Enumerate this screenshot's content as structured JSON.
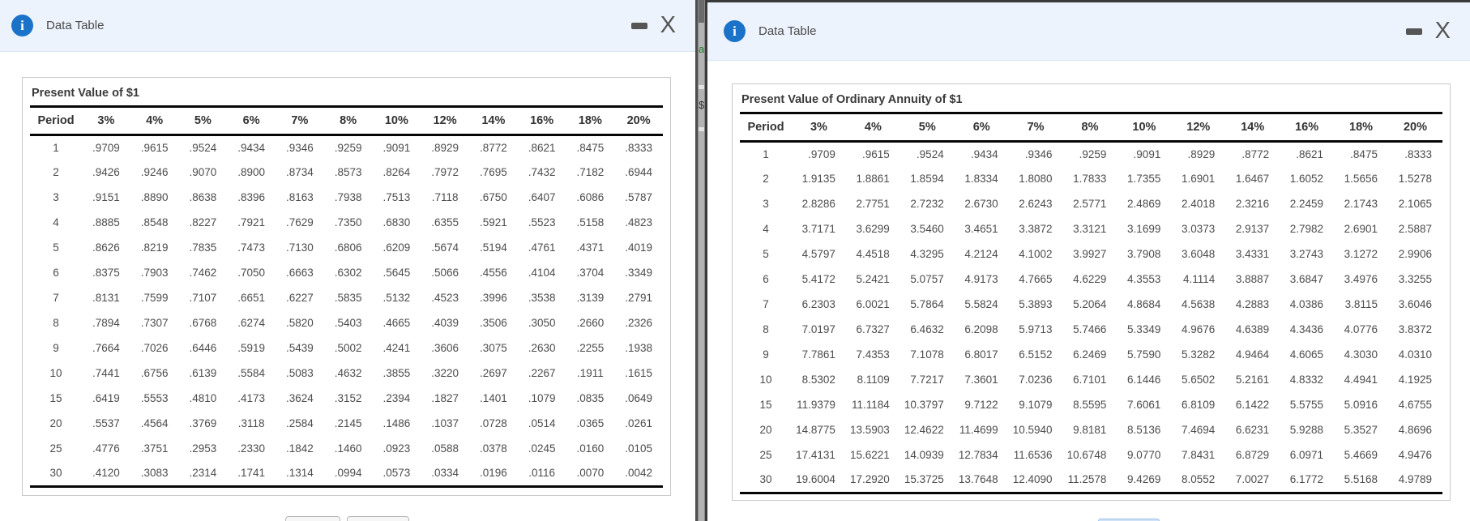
{
  "info_glyph": "i",
  "left": {
    "title_bar": {
      "title": "Data Table",
      "close": "X"
    },
    "table": {
      "title": "Present Value of $1",
      "columns": [
        "Period",
        "3%",
        "4%",
        "5%",
        "6%",
        "7%",
        "8%",
        "10%",
        "12%",
        "14%",
        "16%",
        "18%",
        "20%"
      ],
      "rows": [
        [
          "1",
          ".9709",
          ".9615",
          ".9524",
          ".9434",
          ".9346",
          ".9259",
          ".9091",
          ".8929",
          ".8772",
          ".8621",
          ".8475",
          ".8333"
        ],
        [
          "2",
          ".9426",
          ".9246",
          ".9070",
          ".8900",
          ".8734",
          ".8573",
          ".8264",
          ".7972",
          ".7695",
          ".7432",
          ".7182",
          ".6944"
        ],
        [
          "3",
          ".9151",
          ".8890",
          ".8638",
          ".8396",
          ".8163",
          ".7938",
          ".7513",
          ".7118",
          ".6750",
          ".6407",
          ".6086",
          ".5787"
        ],
        [
          "4",
          ".8885",
          ".8548",
          ".8227",
          ".7921",
          ".7629",
          ".7350",
          ".6830",
          ".6355",
          ".5921",
          ".5523",
          ".5158",
          ".4823"
        ],
        [
          "5",
          ".8626",
          ".8219",
          ".7835",
          ".7473",
          ".7130",
          ".6806",
          ".6209",
          ".5674",
          ".5194",
          ".4761",
          ".4371",
          ".4019"
        ],
        [
          "6",
          ".8375",
          ".7903",
          ".7462",
          ".7050",
          ".6663",
          ".6302",
          ".5645",
          ".5066",
          ".4556",
          ".4104",
          ".3704",
          ".3349"
        ],
        [
          "7",
          ".8131",
          ".7599",
          ".7107",
          ".6651",
          ".6227",
          ".5835",
          ".5132",
          ".4523",
          ".3996",
          ".3538",
          ".3139",
          ".2791"
        ],
        [
          "8",
          ".7894",
          ".7307",
          ".6768",
          ".6274",
          ".5820",
          ".5403",
          ".4665",
          ".4039",
          ".3506",
          ".3050",
          ".2660",
          ".2326"
        ],
        [
          "9",
          ".7664",
          ".7026",
          ".6446",
          ".5919",
          ".5439",
          ".5002",
          ".4241",
          ".3606",
          ".3075",
          ".2630",
          ".2255",
          ".1938"
        ],
        [
          "10",
          ".7441",
          ".6756",
          ".6139",
          ".5584",
          ".5083",
          ".4632",
          ".3855",
          ".3220",
          ".2697",
          ".2267",
          ".1911",
          ".1615"
        ],
        [
          "15",
          ".6419",
          ".5553",
          ".4810",
          ".4173",
          ".3624",
          ".3152",
          ".2394",
          ".1827",
          ".1401",
          ".1079",
          ".0835",
          ".0649"
        ],
        [
          "20",
          ".5537",
          ".4564",
          ".3769",
          ".3118",
          ".2584",
          ".2145",
          ".1486",
          ".1037",
          ".0728",
          ".0514",
          ".0365",
          ".0261"
        ],
        [
          "25",
          ".4776",
          ".3751",
          ".2953",
          ".2330",
          ".1842",
          ".1460",
          ".0923",
          ".0588",
          ".0378",
          ".0245",
          ".0160",
          ".0105"
        ],
        [
          "30",
          ".4120",
          ".3083",
          ".2314",
          ".1741",
          ".1314",
          ".0994",
          ".0573",
          ".0334",
          ".0196",
          ".0116",
          ".0070",
          ".0042"
        ]
      ]
    }
  },
  "right": {
    "title_bar": {
      "title": "Data Table",
      "close": "X"
    },
    "table": {
      "title": "Present Value of Ordinary Annuity of $1",
      "columns": [
        "Period",
        "3%",
        "4%",
        "5%",
        "6%",
        "7%",
        "8%",
        "10%",
        "12%",
        "14%",
        "16%",
        "18%",
        "20%"
      ],
      "rows": [
        [
          "1",
          ".9709",
          ".9615",
          ".9524",
          ".9434",
          ".9346",
          ".9259",
          ".9091",
          ".8929",
          ".8772",
          ".8621",
          ".8475",
          ".8333"
        ],
        [
          "2",
          "1.9135",
          "1.8861",
          "1.8594",
          "1.8334",
          "1.8080",
          "1.7833",
          "1.7355",
          "1.6901",
          "1.6467",
          "1.6052",
          "1.5656",
          "1.5278"
        ],
        [
          "3",
          "2.8286",
          "2.7751",
          "2.7232",
          "2.6730",
          "2.6243",
          "2.5771",
          "2.4869",
          "2.4018",
          "2.3216",
          "2.2459",
          "2.1743",
          "2.1065"
        ],
        [
          "4",
          "3.7171",
          "3.6299",
          "3.5460",
          "3.4651",
          "3.3872",
          "3.3121",
          "3.1699",
          "3.0373",
          "2.9137",
          "2.7982",
          "2.6901",
          "2.5887"
        ],
        [
          "5",
          "4.5797",
          "4.4518",
          "4.3295",
          "4.2124",
          "4.1002",
          "3.9927",
          "3.7908",
          "3.6048",
          "3.4331",
          "3.2743",
          "3.1272",
          "2.9906"
        ],
        [
          "6",
          "5.4172",
          "5.2421",
          "5.0757",
          "4.9173",
          "4.7665",
          "4.6229",
          "4.3553",
          "4.1114",
          "3.8887",
          "3.6847",
          "3.4976",
          "3.3255"
        ],
        [
          "7",
          "6.2303",
          "6.0021",
          "5.7864",
          "5.5824",
          "5.3893",
          "5.2064",
          "4.8684",
          "4.5638",
          "4.2883",
          "4.0386",
          "3.8115",
          "3.6046"
        ],
        [
          "8",
          "7.0197",
          "6.7327",
          "6.4632",
          "6.2098",
          "5.9713",
          "5.7466",
          "5.3349",
          "4.9676",
          "4.6389",
          "4.3436",
          "4.0776",
          "3.8372"
        ],
        [
          "9",
          "7.7861",
          "7.4353",
          "7.1078",
          "6.8017",
          "6.5152",
          "6.2469",
          "5.7590",
          "5.3282",
          "4.9464",
          "4.6065",
          "4.3030",
          "4.0310"
        ],
        [
          "10",
          "8.5302",
          "8.1109",
          "7.7217",
          "7.3601",
          "7.0236",
          "6.7101",
          "6.1446",
          "5.6502",
          "5.2161",
          "4.8332",
          "4.4941",
          "4.1925"
        ],
        [
          "15",
          "11.9379",
          "11.1184",
          "10.3797",
          "9.7122",
          "9.1079",
          "8.5595",
          "7.6061",
          "6.8109",
          "6.1422",
          "5.5755",
          "5.0916",
          "4.6755"
        ],
        [
          "20",
          "14.8775",
          "13.5903",
          "12.4622",
          "11.4699",
          "10.5940",
          "9.8181",
          "8.5136",
          "7.4694",
          "6.6231",
          "5.9288",
          "5.3527",
          "4.8696"
        ],
        [
          "25",
          "17.4131",
          "15.6221",
          "14.0939",
          "12.7834",
          "11.6536",
          "10.6748",
          "9.0770",
          "7.8431",
          "6.8729",
          "6.0971",
          "5.4669",
          "4.9476"
        ],
        [
          "30",
          "19.6004",
          "17.2920",
          "15.3725",
          "13.7648",
          "12.4090",
          "11.2578",
          "9.4269",
          "8.0552",
          "7.0027",
          "6.1772",
          "5.5168",
          "4.9789"
        ]
      ]
    }
  },
  "divider": {
    "letter_top": "a",
    "letter_bottom": "$"
  },
  "colors": {
    "accent_blue": "#1a73c9",
    "titlebar_bg": "#edf3fc",
    "thick_rule": "#050505",
    "table_border": "#c9c9c9"
  }
}
